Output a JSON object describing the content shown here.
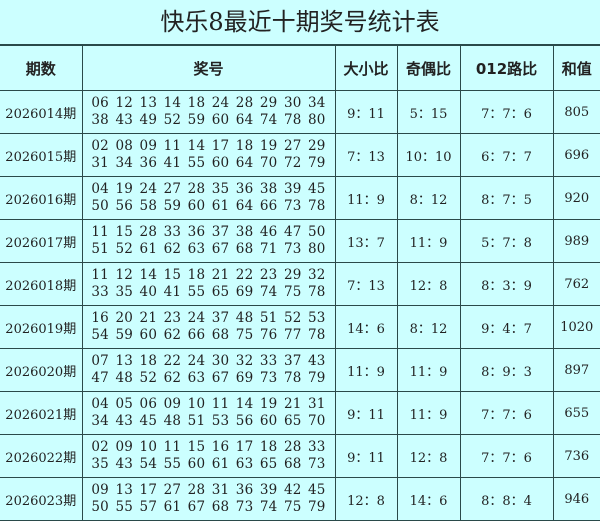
{
  "title": "快乐8最近十期奖号统计表",
  "headers": [
    "期数",
    "奖号",
    "大小比",
    "奇偶比",
    "012路比",
    "和值"
  ],
  "rows": [
    {
      "period": "2026014期",
      "line1": "06 12 13 14 18 24 28 29 30 34",
      "line2": "38 43 49 52 59 60 64 74 78 80",
      "big_small": "9：11",
      "odd_even": "5：15",
      "road012": "7：7：6",
      "sum": "805"
    },
    {
      "period": "2026015期",
      "line1": "02 08 09 11 14 17 18 19 27 29",
      "line2": "31 34 36 41 55 60 64 70 72 79",
      "big_small": "7：13",
      "odd_even": "10：10",
      "road012": "6：7：7",
      "sum": "696"
    },
    {
      "period": "2026016期",
      "line1": "04 19 24 27 28 35 36 38 39 45",
      "line2": "50 56 58 59 60 61 64 66 73 78",
      "big_small": "11：9",
      "odd_even": "8：12",
      "road012": "8：7：5",
      "sum": "920"
    },
    {
      "period": "2026017期",
      "line1": "11 15 28 33 36 37 38 46 47 50",
      "line2": "51 52 61 62 63 67 68 71 73 80",
      "big_small": "13：7",
      "odd_even": "11：9",
      "road012": "5：7：8",
      "sum": "989"
    },
    {
      "period": "2026018期",
      "line1": "11 12 14 15 18 21 22 23 29 32",
      "line2": "33 35 40 41 55 65 69 74 75 78",
      "big_small": "7：13",
      "odd_even": "12：8",
      "road012": "8：3：9",
      "sum": "762"
    },
    {
      "period": "2026019期",
      "line1": "16 20 21 23 24 37 48 51 52 53",
      "line2": "54 59 60 62 66 68 75 76 77 78",
      "big_small": "14：6",
      "odd_even": "8：12",
      "road012": "9：4：7",
      "sum": "1020"
    },
    {
      "period": "2026020期",
      "line1": "07 13 18 22 24 30 32 33 37 43",
      "line2": "47 48 52 62 63 67 69 73 78 79",
      "big_small": "11：9",
      "odd_even": "11：9",
      "road012": "8：9：3",
      "sum": "897"
    },
    {
      "period": "2026021期",
      "line1": "04 05 06 09 10 11 14 19 21 31",
      "line2": "34 43 45 48 51 53 56 60 65 70",
      "big_small": "9：11",
      "odd_even": "11：9",
      "road012": "7：7：6",
      "sum": "655"
    },
    {
      "period": "2026022期",
      "line1": "02 09 10 11 15 16 17 18 28 33",
      "line2": "35 43 54 55 60 61 63 65 68 73",
      "big_small": "9：11",
      "odd_even": "12：8",
      "road012": "7：7：6",
      "sum": "736"
    },
    {
      "period": "2026023期",
      "line1": "09 13 17 27 28 31 36 39 42 45",
      "line2": "50 55 57 61 67 68 73 74 75 79",
      "big_small": "12：8",
      "odd_even": "14：6",
      "road012": "8：8：4",
      "sum": "946"
    }
  ]
}
